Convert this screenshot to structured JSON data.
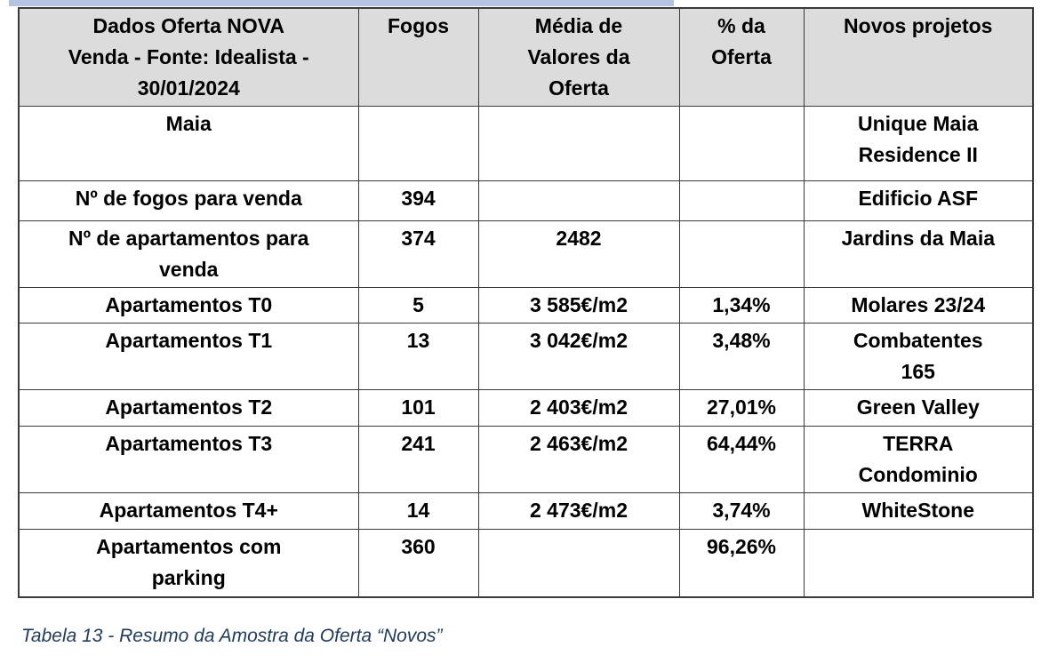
{
  "top_strip_color": "#b5c3e3",
  "header_bg_color": "#dcdcdc",
  "border_color": "#3a3a3a",
  "caption_color": "#1e3a5f",
  "caption": "Tabela 13 - Resumo da Amostra da Oferta “Novos”",
  "table": {
    "columns": [
      {
        "key": "label",
        "label": "Dados Oferta NOVA\nVenda - Fonte: Idealista -\n30/01/2024"
      },
      {
        "key": "fogos",
        "label": "Fogos"
      },
      {
        "key": "media",
        "label": "Média de\nValores da\nOferta"
      },
      {
        "key": "pct",
        "label": "% da\nOferta"
      },
      {
        "key": "projeto",
        "label": "Novos projetos"
      }
    ],
    "rows": [
      {
        "label": "Maia",
        "fogos": "",
        "media": "",
        "pct": "",
        "projeto": "Unique Maia\nResidence II"
      },
      {
        "label": "Nº de fogos para venda",
        "fogos": "394",
        "media": "",
        "pct": "",
        "projeto": "Edificio ASF"
      },
      {
        "label": "Nº de apartamentos para\nvenda",
        "fogos": "374",
        "media": "2482",
        "pct": "",
        "projeto": "Jardins da Maia"
      },
      {
        "label": "Apartamentos T0",
        "fogos": "5",
        "media": "3 585€/m2",
        "pct": "1,34%",
        "projeto": "Molares 23/24"
      },
      {
        "label": "Apartamentos T1",
        "fogos": "13",
        "media": "3 042€/m2",
        "pct": "3,48%",
        "projeto": "Combatentes\n165"
      },
      {
        "label": "Apartamentos T2",
        "fogos": "101",
        "media": "2 403€/m2",
        "pct": "27,01%",
        "projeto": "Green Valley"
      },
      {
        "label": "Apartamentos T3",
        "fogos": "241",
        "media": "2 463€/m2",
        "pct": "64,44%",
        "projeto": "TERRA\nCondominio"
      },
      {
        "label": "Apartamentos T4+",
        "fogos": "14",
        "media": "2 473€/m2",
        "pct": "3,74%",
        "projeto": "WhiteStone"
      },
      {
        "label": "Apartamentos com\nparking",
        "fogos": "360",
        "media": "",
        "pct": "96,26%",
        "projeto": ""
      }
    ]
  }
}
